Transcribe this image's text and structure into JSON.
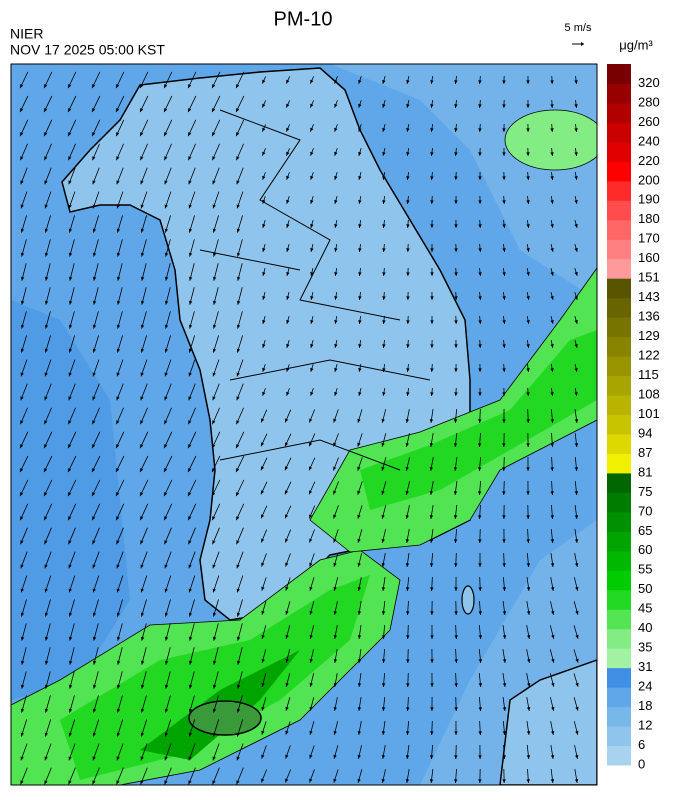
{
  "title": "PM-10",
  "source": "NIER",
  "timestamp": "NOV 17 2025 05:00 KST",
  "wind_scale_label": "5 m/s",
  "unit": "μg/m³",
  "colorbar": {
    "levels": [
      0,
      6,
      12,
      18,
      24,
      31,
      35,
      40,
      45,
      50,
      55,
      60,
      65,
      70,
      75,
      81,
      87,
      94,
      101,
      108,
      115,
      122,
      129,
      136,
      143,
      151,
      160,
      170,
      180,
      190,
      200,
      220,
      240,
      260,
      280,
      320
    ],
    "colors": [
      "#a7d3ee",
      "#8fc5ec",
      "#78b7ea",
      "#5fa7e8",
      "#3f8fe6",
      "#a3f2a3",
      "#84ec84",
      "#52e452",
      "#22d822",
      "#00cc00",
      "#00b800",
      "#00a400",
      "#009000",
      "#007c00",
      "#006600",
      "#f0f000",
      "#dcd800",
      "#c8c400",
      "#b8b400",
      "#a8a400",
      "#989400",
      "#888400",
      "#787400",
      "#686400",
      "#585400",
      "#ff9a9a",
      "#ff8080",
      "#ff6666",
      "#ff4c4c",
      "#ff2a2a",
      "#ff0000",
      "#e00000",
      "#c80000",
      "#b00000",
      "#980000",
      "#780000"
    ]
  }
}
